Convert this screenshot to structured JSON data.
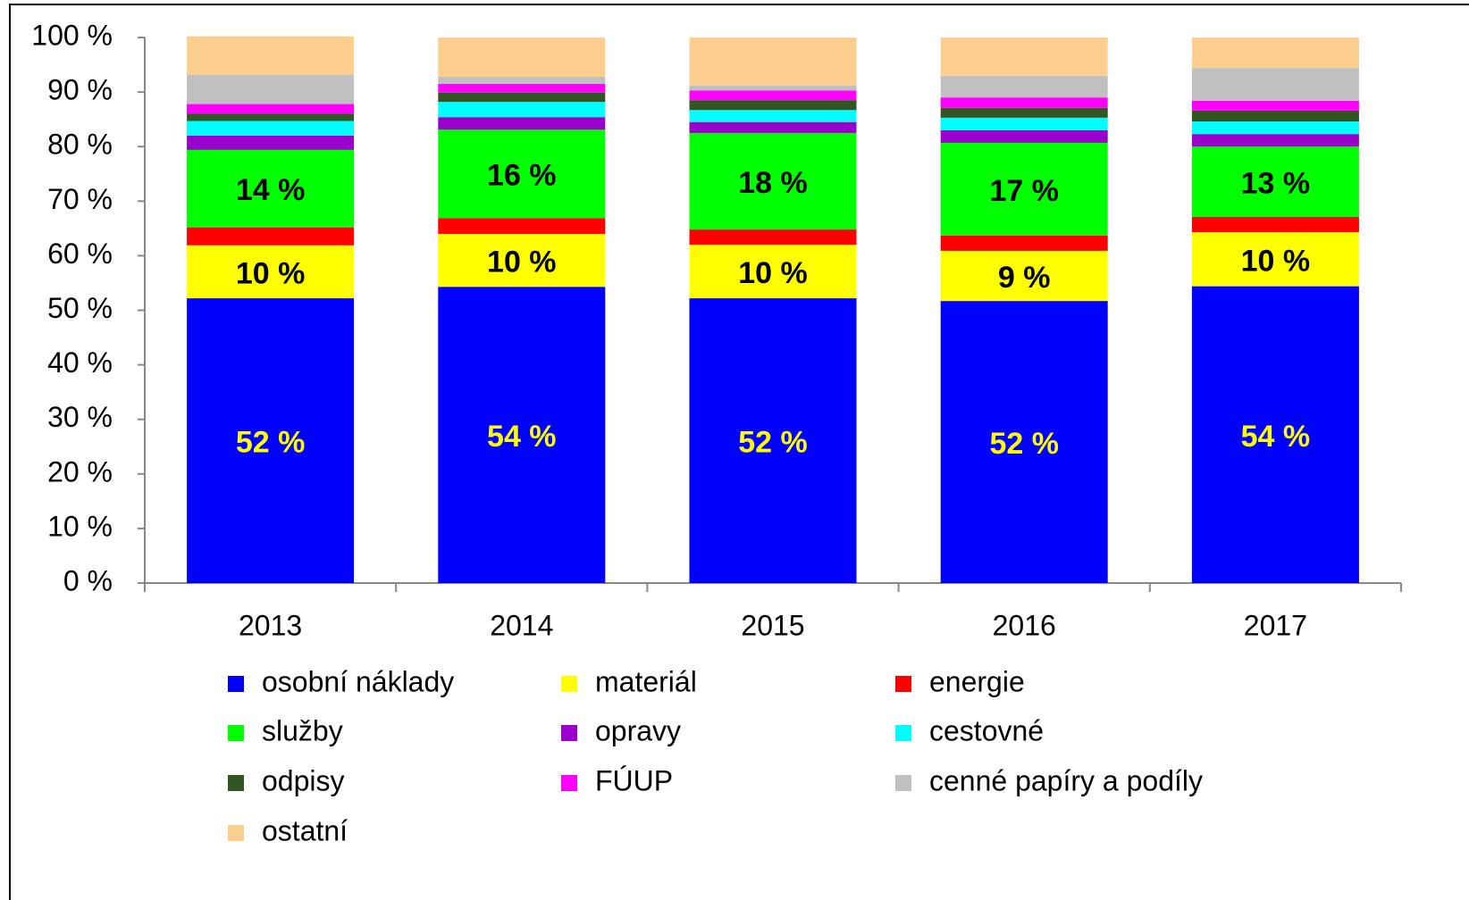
{
  "chart_data": {
    "type": "stacked_bar",
    "categories": [
      "2013",
      "2014",
      "2015",
      "2016",
      "2017"
    ],
    "ylim": [
      0,
      100
    ],
    "yticks": [
      {
        "value": 0,
        "label": "0 %"
      },
      {
        "value": 10,
        "label": "10 %"
      },
      {
        "value": 20,
        "label": "20 %"
      },
      {
        "value": 30,
        "label": "30 %"
      },
      {
        "value": 40,
        "label": "40 %"
      },
      {
        "value": 50,
        "label": "50 %"
      },
      {
        "value": 60,
        "label": "60 %"
      },
      {
        "value": 70,
        "label": "70 %"
      },
      {
        "value": 80,
        "label": "80 %"
      },
      {
        "value": 90,
        "label": "90 %"
      },
      {
        "value": 100,
        "label": "100 %"
      }
    ],
    "legend": "bottom",
    "series": [
      {
        "name": "osobní náklady",
        "color": "#0000ff",
        "label_color": "#ffff00",
        "values": [
          52.2,
          54.3,
          52.2,
          51.7,
          54.4
        ],
        "value_labels": [
          "52 %",
          "54 %",
          "52 %",
          "52 %",
          "54 %"
        ]
      },
      {
        "name": "materiál",
        "color": "#ffff00",
        "label_color": "#000000",
        "values": [
          9.7,
          9.7,
          9.8,
          9.2,
          9.9
        ],
        "value_labels": [
          "10 %",
          "10 %",
          "10 %",
          "9 %",
          "10 %"
        ]
      },
      {
        "name": "energie",
        "color": "#ff0000",
        "values": [
          3.3,
          2.9,
          2.8,
          2.8,
          2.8
        ]
      },
      {
        "name": "služby",
        "color": "#00ff00",
        "label_color": "#000000",
        "values": [
          14.2,
          16.2,
          17.7,
          17.0,
          12.9
        ],
        "value_labels": [
          "14 %",
          "16 %",
          "18 %",
          "17 %",
          "13 %"
        ]
      },
      {
        "name": "opravy",
        "color": "#9900cc",
        "values": [
          2.6,
          2.3,
          2.0,
          2.3,
          2.3
        ]
      },
      {
        "name": "cestovné",
        "color": "#00ffff",
        "values": [
          2.7,
          2.8,
          2.2,
          2.3,
          2.3
        ]
      },
      {
        "name": "odpisy",
        "color": "#335522",
        "values": [
          1.3,
          1.7,
          1.8,
          1.8,
          2.0
        ]
      },
      {
        "name": "FÚUP",
        "color": "#ff00ff",
        "values": [
          1.8,
          1.6,
          1.8,
          1.9,
          1.8
        ]
      },
      {
        "name": "cenné papíry a podíly",
        "color": "#c0c0c0",
        "values": [
          5.4,
          1.3,
          0.9,
          4.0,
          6.0
        ]
      },
      {
        "name": "ostatní",
        "color": "#fccf8f",
        "values": [
          7.0,
          7.2,
          8.8,
          7.0,
          5.6
        ]
      }
    ]
  }
}
